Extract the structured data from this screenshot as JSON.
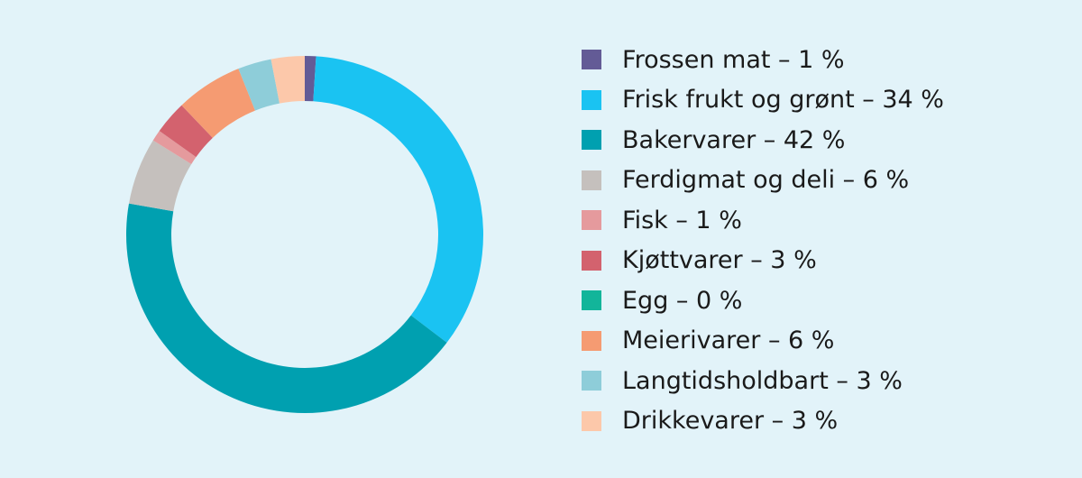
{
  "chart_data": {
    "type": "pie",
    "style": "donut",
    "title": "",
    "legend_position": "right",
    "slices": [
      {
        "label": "Frossen mat – 1 %",
        "name": "Frossen mat",
        "value": 1,
        "color": "#635b96"
      },
      {
        "label": "Frisk frukt og grønt – 34 %",
        "name": "Frisk frukt og grønt",
        "value": 34,
        "color": "#1ac3f2"
      },
      {
        "label": "Bakervarer – 42 %",
        "name": "Bakervarer",
        "value": 42,
        "color": "#00a0b0"
      },
      {
        "label": "Ferdigmat og deli – 6 %",
        "name": "Ferdigmat og deli",
        "value": 6,
        "color": "#c5c0bd"
      },
      {
        "label": "Fisk – 1 %",
        "name": "Fisk",
        "value": 1,
        "color": "#e59a9d"
      },
      {
        "label": "Kjøttvarer – 3 %",
        "name": "Kjøttvarer",
        "value": 3,
        "color": "#d3626e"
      },
      {
        "label": "Egg – 0 %",
        "name": "Egg",
        "value": 0,
        "color": "#12b59a"
      },
      {
        "label": "Meierivarer – 6 %",
        "name": "Meierivarer",
        "value": 6,
        "color": "#f59b72"
      },
      {
        "label": "Langtidsholdbart – 3 %",
        "name": "Langtidsholdbart",
        "value": 3,
        "color": "#8ecdd9"
      },
      {
        "label": "Drikkevarer – 3 %",
        "name": "Drikkevarer",
        "value": 3,
        "color": "#fcc8aa"
      }
    ]
  }
}
